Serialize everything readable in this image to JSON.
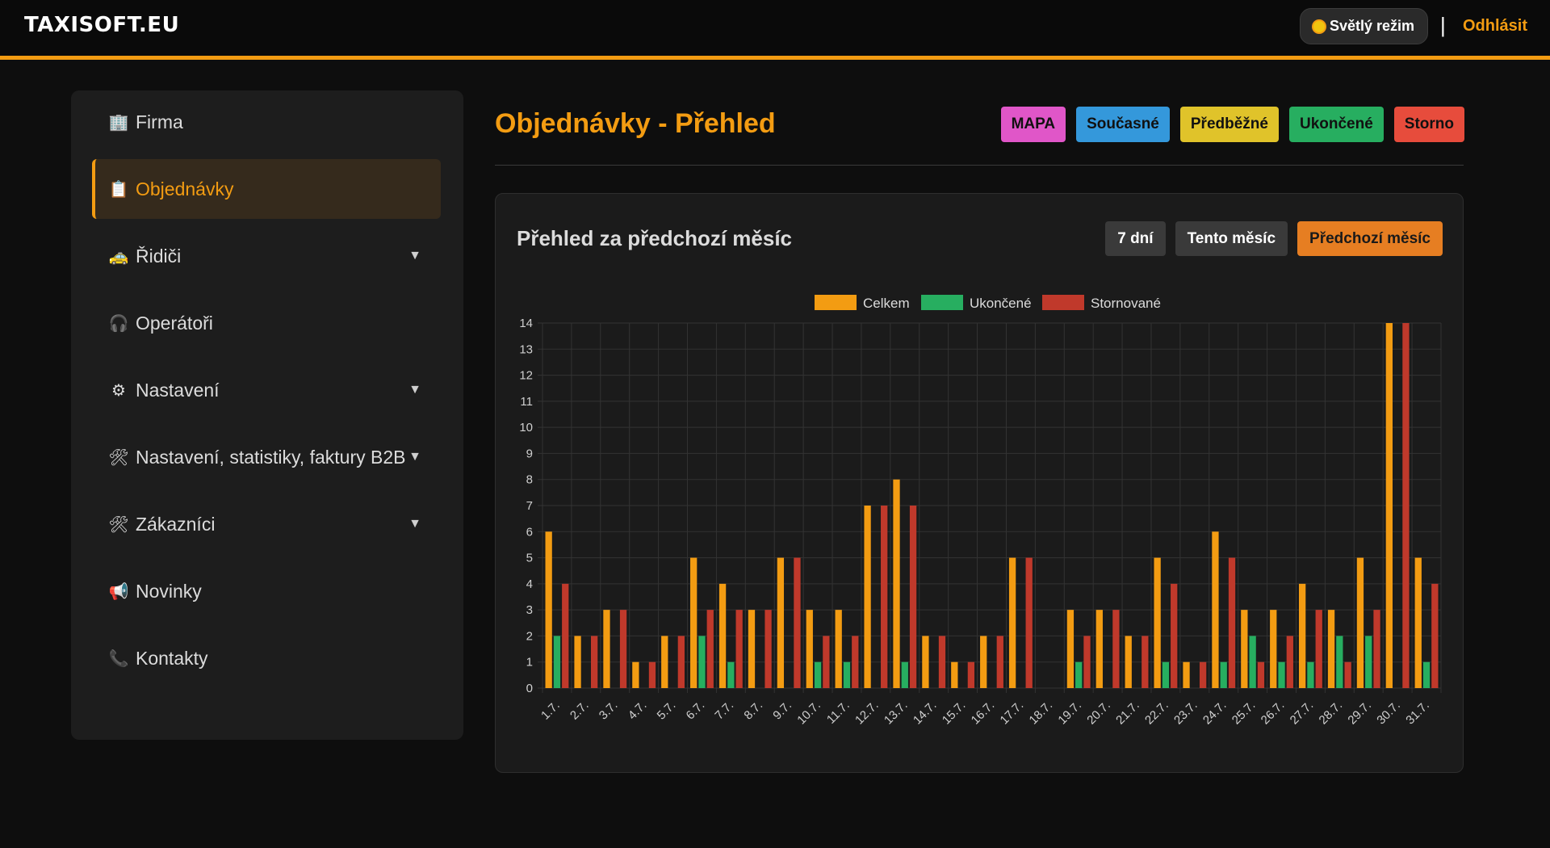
{
  "app": {
    "brand": "TAXISOFT.EU"
  },
  "topbar": {
    "theme_label": "Světlý režim",
    "separator": "|",
    "logout_label": "Odhlásit"
  },
  "sidebar": {
    "items": [
      {
        "label": "Firma",
        "icon": "building-icon",
        "expandable": false,
        "active": false
      },
      {
        "label": "Objednávky",
        "icon": "clipboard-icon",
        "expandable": false,
        "active": true
      },
      {
        "label": "Řidiči",
        "icon": "taxi-icon",
        "expandable": true,
        "active": false
      },
      {
        "label": "Operátoři",
        "icon": "headphones-icon",
        "expandable": false,
        "active": false
      },
      {
        "label": "Nastavení",
        "icon": "gear-icon",
        "expandable": true,
        "active": false
      },
      {
        "label": "Nastavení, statistiky, faktury B2B",
        "icon": "tools-icon",
        "expandable": true,
        "active": false
      },
      {
        "label": "Zákazníci",
        "icon": "tools-icon",
        "expandable": true,
        "active": false
      },
      {
        "label": "Novinky",
        "icon": "megaphone-icon",
        "expandable": false,
        "active": false
      },
      {
        "label": "Kontakty",
        "icon": "phone-icon",
        "expandable": false,
        "active": false
      }
    ]
  },
  "main": {
    "title": "Objednávky - Přehled",
    "filters": [
      {
        "label": "MAPA",
        "color": "#e056c8"
      },
      {
        "label": "Současné",
        "color": "#3498db"
      },
      {
        "label": "Předběžné",
        "color": "#e0c32a"
      },
      {
        "label": "Ukončené",
        "color": "#27ae60"
      },
      {
        "label": "Storno",
        "color": "#e74c3c"
      }
    ]
  },
  "card": {
    "title": "Přehled za předchozí měsíc",
    "period_buttons": [
      {
        "label": "7 dní",
        "active": false
      },
      {
        "label": "Tento měsíc",
        "active": false
      },
      {
        "label": "Předchozí měsíc",
        "active": true
      }
    ]
  },
  "chart_data": {
    "type": "bar",
    "categories": [
      "1.7.",
      "2.7.",
      "3.7.",
      "4.7.",
      "5.7.",
      "6.7.",
      "7.7.",
      "8.7.",
      "9.7.",
      "10.7.",
      "11.7.",
      "12.7.",
      "13.7.",
      "14.7.",
      "15.7.",
      "16.7.",
      "17.7.",
      "18.7.",
      "19.7.",
      "20.7.",
      "21.7.",
      "22.7.",
      "23.7.",
      "24.7.",
      "25.7.",
      "26.7.",
      "27.7.",
      "28.7.",
      "29.7.",
      "30.7.",
      "31.7."
    ],
    "series": [
      {
        "name": "Celkem",
        "color": "#f39c12",
        "values": [
          6,
          2,
          3,
          1,
          2,
          5,
          4,
          3,
          5,
          3,
          3,
          7,
          8,
          2,
          1,
          2,
          5,
          0,
          3,
          3,
          2,
          5,
          1,
          6,
          3,
          3,
          4,
          3,
          5,
          14,
          5
        ]
      },
      {
        "name": "Ukončené",
        "color": "#27ae60",
        "values": [
          2,
          0,
          0,
          0,
          0,
          2,
          1,
          0,
          0,
          1,
          1,
          0,
          1,
          0,
          0,
          0,
          0,
          0,
          1,
          0,
          0,
          1,
          0,
          1,
          2,
          1,
          1,
          2,
          2,
          0,
          1
        ]
      },
      {
        "name": "Stornované",
        "color": "#c0392b",
        "values": [
          4,
          2,
          3,
          1,
          2,
          3,
          3,
          3,
          5,
          2,
          2,
          7,
          7,
          2,
          1,
          2,
          5,
          0,
          2,
          3,
          2,
          4,
          1,
          5,
          1,
          2,
          3,
          1,
          3,
          14,
          4
        ]
      }
    ],
    "ylim": [
      0,
      14
    ],
    "y_ticks": [
      0,
      1,
      2,
      3,
      4,
      5,
      6,
      7,
      8,
      9,
      10,
      11,
      12,
      13,
      14
    ],
    "grid": true,
    "legend": "top-center"
  }
}
